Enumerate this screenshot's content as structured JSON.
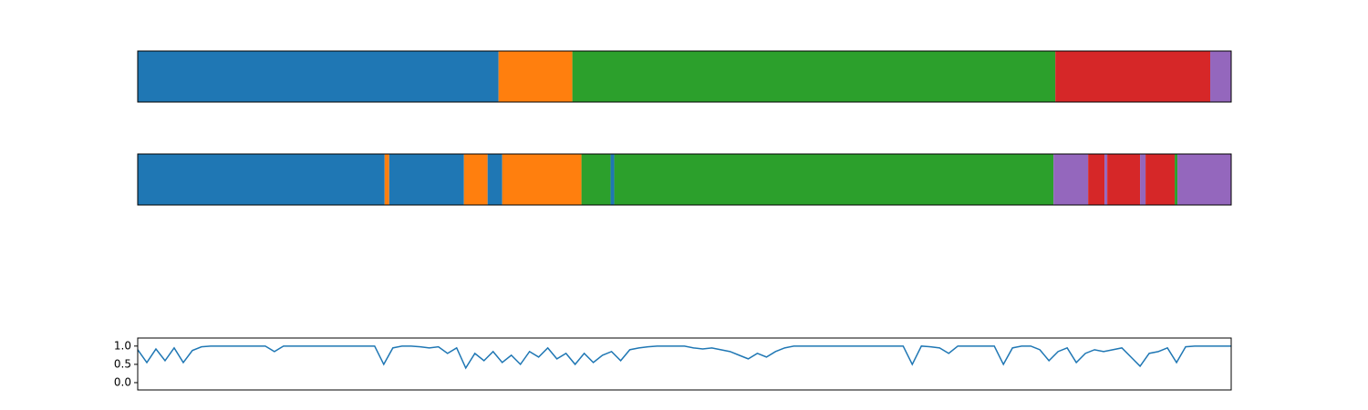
{
  "chart_data": [
    {
      "type": "segments",
      "xlim": [
        0,
        1200
      ],
      "segments": [
        {
          "start": 0,
          "end": 396,
          "color": "#1f77b4"
        },
        {
          "start": 396,
          "end": 477,
          "color": "#ff7f0e"
        },
        {
          "start": 477,
          "end": 1007,
          "color": "#2ca02c"
        },
        {
          "start": 1007,
          "end": 1177,
          "color": "#d62728"
        },
        {
          "start": 1177,
          "end": 1200,
          "color": "#9467bd"
        }
      ]
    },
    {
      "type": "segments",
      "xlim": [
        0,
        1200
      ],
      "segments": [
        {
          "start": 0,
          "end": 271,
          "color": "#1f77b4"
        },
        {
          "start": 271,
          "end": 276,
          "color": "#ff7f0e"
        },
        {
          "start": 276,
          "end": 358,
          "color": "#1f77b4"
        },
        {
          "start": 358,
          "end": 384,
          "color": "#ff7f0e"
        },
        {
          "start": 384,
          "end": 400,
          "color": "#1f77b4"
        },
        {
          "start": 400,
          "end": 487,
          "color": "#ff7f0e"
        },
        {
          "start": 487,
          "end": 519,
          "color": "#2ca02c"
        },
        {
          "start": 519,
          "end": 523,
          "color": "#1f77b4"
        },
        {
          "start": 523,
          "end": 1005,
          "color": "#2ca02c"
        },
        {
          "start": 1005,
          "end": 1043,
          "color": "#9467bd"
        },
        {
          "start": 1043,
          "end": 1061,
          "color": "#d62728"
        },
        {
          "start": 1061,
          "end": 1064,
          "color": "#9467bd"
        },
        {
          "start": 1064,
          "end": 1100,
          "color": "#d62728"
        },
        {
          "start": 1100,
          "end": 1106,
          "color": "#9467bd"
        },
        {
          "start": 1106,
          "end": 1138,
          "color": "#d62728"
        },
        {
          "start": 1138,
          "end": 1141,
          "color": "#2ca02c"
        },
        {
          "start": 1141,
          "end": 1200,
          "color": "#9467bd"
        }
      ]
    },
    {
      "type": "line",
      "xlim": [
        0,
        1200
      ],
      "ylim": [
        -0.2,
        1.22
      ],
      "yticks": [
        {
          "value": 0,
          "label": "0.0"
        },
        {
          "value": 0.5,
          "label": "0.5"
        },
        {
          "value": 1,
          "label": "1.0"
        }
      ],
      "x": [
        0,
        10,
        20,
        30,
        40,
        50,
        60,
        70,
        80,
        90,
        100,
        110,
        120,
        130,
        140,
        150,
        160,
        170,
        180,
        190,
        200,
        210,
        220,
        230,
        240,
        250,
        260,
        270,
        280,
        290,
        300,
        310,
        320,
        330,
        340,
        350,
        360,
        370,
        380,
        390,
        400,
        410,
        420,
        430,
        440,
        450,
        460,
        470,
        480,
        490,
        500,
        510,
        520,
        530,
        540,
        550,
        560,
        570,
        580,
        590,
        600,
        610,
        620,
        630,
        640,
        650,
        660,
        670,
        680,
        690,
        700,
        710,
        720,
        730,
        740,
        750,
        760,
        770,
        780,
        790,
        800,
        810,
        820,
        830,
        840,
        850,
        860,
        870,
        880,
        890,
        900,
        910,
        920,
        930,
        940,
        950,
        960,
        970,
        980,
        990,
        1000,
        1010,
        1020,
        1030,
        1040,
        1050,
        1060,
        1070,
        1080,
        1090,
        1100,
        1110,
        1120,
        1130,
        1140,
        1150,
        1160,
        1170,
        1180,
        1190,
        1200
      ],
      "series": [
        {
          "color": "#1f77b4",
          "values": [
            0.9,
            0.55,
            0.92,
            0.6,
            0.95,
            0.55,
            0.88,
            0.98,
            1,
            1,
            1,
            1,
            1,
            1,
            1,
            0.85,
            1,
            1,
            1,
            1,
            1,
            1,
            1,
            1,
            1,
            1,
            1,
            0.5,
            0.95,
            1,
            1,
            0.98,
            0.95,
            0.98,
            0.8,
            0.95,
            0.4,
            0.8,
            0.6,
            0.85,
            0.55,
            0.75,
            0.5,
            0.85,
            0.7,
            0.95,
            0.65,
            0.8,
            0.5,
            0.8,
            0.55,
            0.75,
            0.85,
            0.6,
            0.9,
            0.95,
            0.98,
            1,
            1,
            1,
            1,
            0.95,
            0.92,
            0.95,
            0.9,
            0.85,
            0.75,
            0.65,
            0.8,
            0.7,
            0.85,
            0.95,
            1,
            1,
            1,
            1,
            1,
            1,
            1,
            1,
            1,
            1,
            1,
            1,
            1,
            0.5,
            1,
            0.98,
            0.95,
            0.8,
            1,
            1,
            1,
            1,
            1,
            0.5,
            0.95,
            1,
            1,
            0.9,
            0.6,
            0.85,
            0.95,
            0.55,
            0.8,
            0.9,
            0.85,
            0.9,
            0.95,
            0.7,
            0.45,
            0.8,
            0.85,
            0.95,
            0.55,
            0.98,
            1,
            1,
            1,
            1,
            1
          ]
        }
      ]
    }
  ]
}
